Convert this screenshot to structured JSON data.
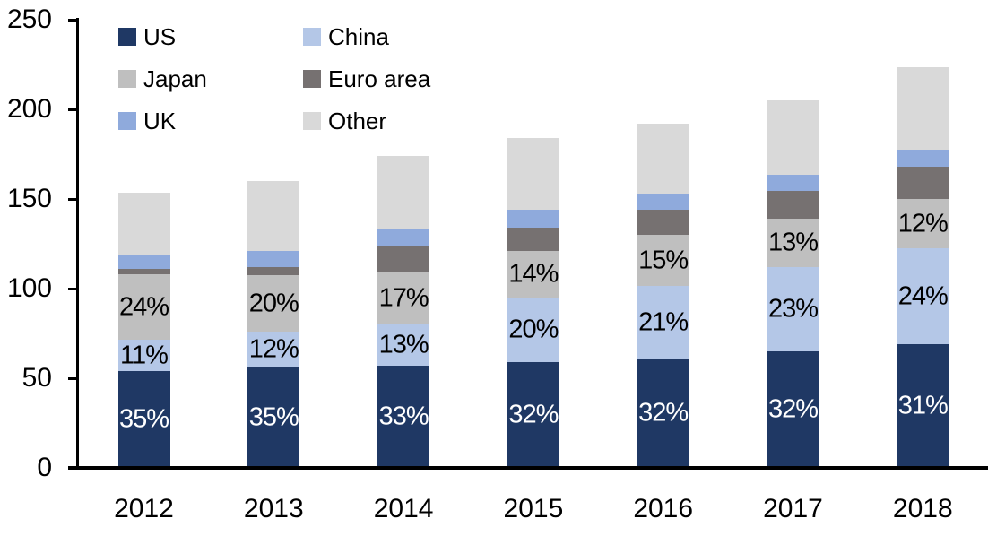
{
  "chart_data": {
    "type": "bar",
    "stacked": true,
    "title": "",
    "xlabel": "",
    "ylabel": "",
    "categories": [
      "2012",
      "2013",
      "2014",
      "2015",
      "2016",
      "2017",
      "2018"
    ],
    "series": [
      {
        "name": "US",
        "color": "#1F3864",
        "values": [
          54,
          56.5,
          57,
          59,
          61,
          65,
          69
        ],
        "labels": [
          "35%",
          "35%",
          "33%",
          "32%",
          "32%",
          "32%",
          "31%"
        ],
        "label_color": "#FFFFFF"
      },
      {
        "name": "China",
        "color": "#B4C7E7",
        "values": [
          17.5,
          19.5,
          23,
          36,
          40.5,
          47,
          53.5
        ],
        "labels": [
          "11%",
          "12%",
          "13%",
          "20%",
          "21%",
          "23%",
          "24%"
        ],
        "label_color": "#000000"
      },
      {
        "name": "Japan",
        "color": "#BFBFBF",
        "values": [
          36.5,
          31.5,
          29,
          26,
          28.5,
          27,
          27.5
        ],
        "labels": [
          "24%",
          "20%",
          "17%",
          "14%",
          "15%",
          "13%",
          "12%"
        ],
        "label_color": "#000000"
      },
      {
        "name": "Euro area",
        "color": "#767171",
        "values": [
          3,
          4.5,
          14.5,
          13,
          14,
          15.5,
          18
        ],
        "labels": null,
        "label_color": null
      },
      {
        "name": "UK",
        "color": "#8FAADC",
        "values": [
          7.5,
          9,
          9.5,
          10,
          9,
          9,
          9.5
        ],
        "labels": null,
        "label_color": null
      },
      {
        "name": "Other",
        "color": "#D9D9D9",
        "values": [
          35,
          39,
          41,
          40,
          39,
          41.5,
          46
        ],
        "labels": null,
        "label_color": null
      }
    ],
    "totals": [
      153.5,
      160,
      174,
      184,
      192,
      205,
      223.5
    ],
    "y_axis": {
      "min": 0,
      "max": 250,
      "ticks": [
        "0",
        "50",
        "100",
        "150",
        "200",
        "250"
      ],
      "tick_values": [
        0,
        50,
        100,
        150,
        200,
        250
      ]
    },
    "legend": {
      "position": "top-left",
      "columns": 2,
      "order_row_major": [
        "US",
        "China",
        "Japan",
        "Euro area",
        "UK",
        "Other"
      ]
    },
    "grid": false
  }
}
